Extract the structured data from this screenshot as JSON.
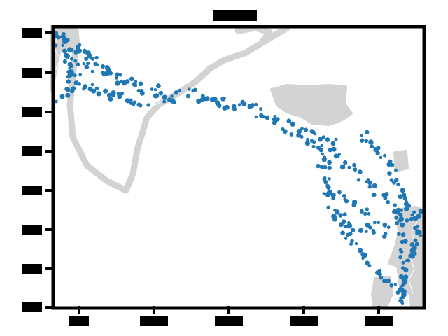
{
  "map": {
    "title": "",
    "x_tick_labels": [
      "",
      "",
      "",
      "",
      ""
    ],
    "y_tick_labels": [
      "",
      "",
      "",
      "",
      "",
      "",
      "",
      ""
    ],
    "colors": {
      "track": "#1f77b4",
      "land": "#d3d3d3",
      "frame": "#000000",
      "background": "#ffffff"
    },
    "legend": "none",
    "grid": false
  }
}
